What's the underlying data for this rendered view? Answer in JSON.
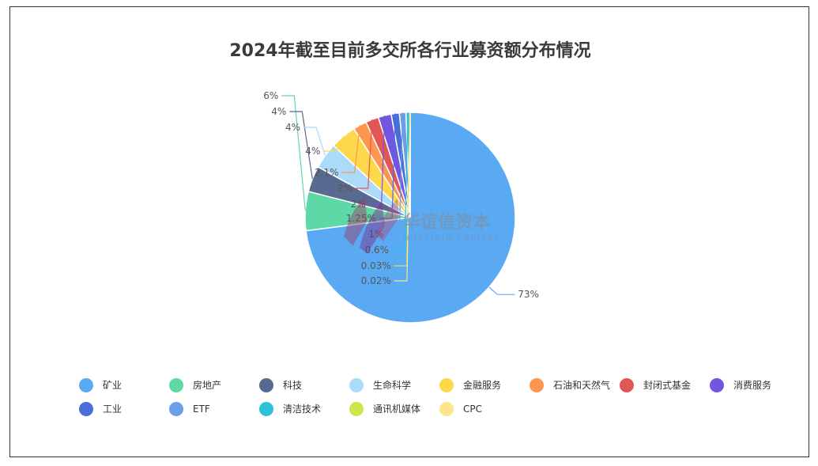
{
  "chart_data": {
    "type": "pie",
    "title": "2024年截至目前多交所各行业募资额分布情况",
    "legend_position": "bottom",
    "slices": [
      {
        "name": "矿业",
        "value": 73,
        "label": "73%",
        "color": "#5aaaf3"
      },
      {
        "name": "房地产",
        "value": 6,
        "label": "6%",
        "color": "#5fd8a8"
      },
      {
        "name": "科技",
        "value": 4,
        "label": "4%",
        "color": "#596a91"
      },
      {
        "name": "生命科学",
        "value": 4,
        "label": "4%",
        "color": "#aadbf8"
      },
      {
        "name": "金融服务",
        "value": 4,
        "label": "4%",
        "color": "#fdd84a"
      },
      {
        "name": "石油和天然气",
        "value": 2.1,
        "label": "2.1%",
        "color": "#fd9650"
      },
      {
        "name": "封闭式基金",
        "value": 2,
        "label": "2%",
        "color": "#e35656"
      },
      {
        "name": "消费服务",
        "value": 2,
        "label": "2%",
        "color": "#7256e0"
      },
      {
        "name": "工业",
        "value": 1.25,
        "label": "1.25%",
        "color": "#4a6ed8"
      },
      {
        "name": "ETF",
        "value": 1,
        "label": "1%",
        "color": "#6a9ee8"
      },
      {
        "name": "清洁技术",
        "value": 0.6,
        "label": "0.6%",
        "color": "#2ec2d8"
      },
      {
        "name": "通讯机媒体",
        "value": 0.03,
        "label": "0.03%",
        "color": "#cde64e"
      },
      {
        "name": "CPC",
        "value": 0.02,
        "label": "0.02%",
        "color": "#fde48e"
      }
    ]
  },
  "watermark": {
    "name_cn": "华谊信资本",
    "name_en": "HUAYIXIN CAPITAL"
  }
}
